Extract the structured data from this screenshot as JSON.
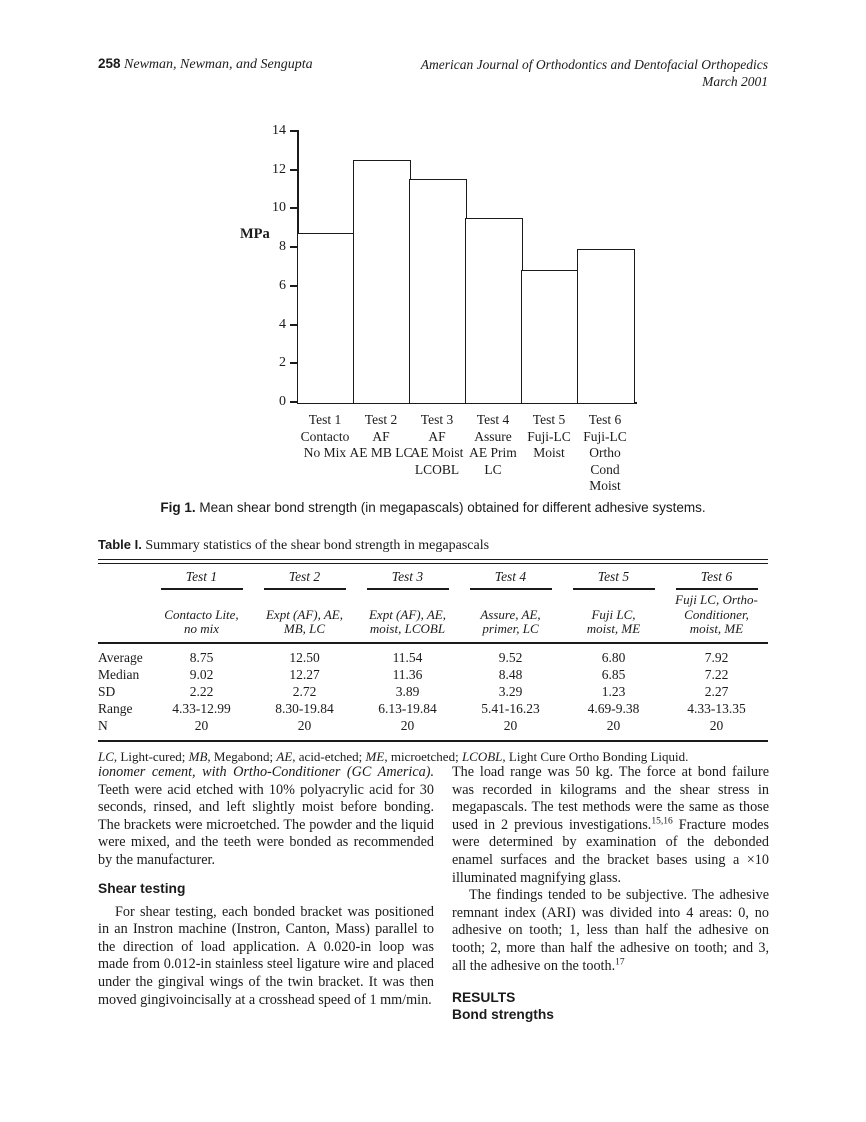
{
  "colors": {
    "ink": "#1b1b1b",
    "paper": "#ffffff"
  },
  "header": {
    "page_number": "258",
    "running_authors": "Newman, Newman, and Sengupta",
    "journal": "American Journal of Orthodontics and Dentofacial Orthopedics",
    "issue_date": "March 2001"
  },
  "chart_data": {
    "type": "bar",
    "categories": [
      "Test 1\nContacto\nNo Mix",
      "Test 2\nAF\nAE MB LC",
      "Test 3\nAF\nAE Moist\nLCOBL",
      "Test 4\nAssure\nAE Prim\nLC",
      "Test 5\nFuji-LC\nMoist",
      "Test 6\nFuji-LC\nOrtho\nCond\nMoist"
    ],
    "values": [
      8.75,
      12.5,
      11.54,
      9.52,
      6.8,
      7.92
    ],
    "title": "",
    "xlabel": "",
    "ylabel": "MPa",
    "yticks": [
      0,
      2,
      4,
      6,
      8,
      10,
      12,
      14
    ],
    "ylim": [
      0,
      14
    ],
    "grid": "off",
    "legend": "none"
  },
  "figure": {
    "label": "Fig 1.",
    "caption": "Mean shear bond strength (in megapascals) obtained for different adhesive systems."
  },
  "table": {
    "title_label": "Table I.",
    "title_text": " Summary statistics of the shear bond strength in megapascals",
    "columns": [
      {
        "name": "Test 1",
        "sub": "Contacto Lite,\nno mix"
      },
      {
        "name": "Test 2",
        "sub": "Expt (AF), AE,\nMB, LC"
      },
      {
        "name": "Test 3",
        "sub": "Expt (AF), AE,\nmoist, LCOBL"
      },
      {
        "name": "Test 4",
        "sub": "Assure, AE,\nprimer, LC"
      },
      {
        "name": "Test 5",
        "sub": "Fuji LC,\nmoist, ME"
      },
      {
        "name": "Test 6",
        "sub": "Fuji LC, Ortho-\nConditioner,\nmoist, ME"
      }
    ],
    "rows": [
      {
        "label": "Average",
        "values": [
          "8.75",
          "12.50",
          "11.54",
          "9.52",
          "6.80",
          "7.92"
        ]
      },
      {
        "label": "Median",
        "values": [
          "9.02",
          "12.27",
          "11.36",
          "8.48",
          "6.85",
          "7.22"
        ]
      },
      {
        "label": "SD",
        "values": [
          "2.22",
          "2.72",
          "3.89",
          "3.29",
          "1.23",
          "2.27"
        ]
      },
      {
        "label": "Range",
        "values": [
          "4.33-12.99",
          "8.30-19.84",
          "6.13-19.84",
          "5.41-16.23",
          "4.69-9.38",
          "4.33-13.35"
        ]
      },
      {
        "label": "N",
        "values": [
          "20",
          "20",
          "20",
          "20",
          "20",
          "20"
        ]
      }
    ],
    "footnote_runs": [
      {
        "t": "LC",
        "i": 1
      },
      {
        "t": ", Light-cured; ",
        "i": 0
      },
      {
        "t": "MB",
        "i": 1
      },
      {
        "t": ", Megabond; ",
        "i": 0
      },
      {
        "t": "AE",
        "i": 1
      },
      {
        "t": ", acid-etched; ",
        "i": 0
      },
      {
        "t": "ME",
        "i": 1
      },
      {
        "t": ", microetched; ",
        "i": 0
      },
      {
        "t": "LCOBL",
        "i": 1
      },
      {
        "t": ", Light Cure Ortho Bonding Liquid.",
        "i": 0
      }
    ]
  },
  "body_text": {
    "left": {
      "para1_italic": "ionomer cement, with Ortho-Conditioner (GC America).",
      "para1_roman": " Teeth were acid etched with 10% polyacrylic acid for 30 seconds, rinsed, and left slightly moist before bonding. The brackets were microetched. The powder and the liquid were mixed, and the teeth were bonded as recommended by the manufacturer.",
      "heading": "Shear testing",
      "para2": "For shear testing, each bonded bracket was positioned in an Instron machine (Instron, Canton, Mass) parallel to the direction of load application. A 0.020-in loop was made from 0.012-in stainless steel ligature wire and placed under the gingival wings of the twin bracket. It was then moved gingivoincisally at a crosshead speed of 1 mm/min."
    },
    "right": {
      "para1_pre": "The load range was 50 kg. The force at bond failure was recorded in kilograms and the shear stress in megapascals. The test methods were the same as those used in 2 previous investigations.",
      "para1_sup": "15,16",
      "para1_post": " Fracture modes were determined by examination of the debonded enamel surfaces and the bracket bases using a ×10 illuminated magnifying glass.",
      "para2_pre": "The findings tended to be subjective. The adhesive remnant index (ARI) was divided into 4 areas: 0, no adhesive on tooth; 1, less than half the adhesive on tooth; 2, more than half the adhesive on tooth; and 3, all the adhesive on the tooth.",
      "para2_sup": "17",
      "results_heading": "RESULTS",
      "bond_heading": "Bond strengths"
    }
  }
}
